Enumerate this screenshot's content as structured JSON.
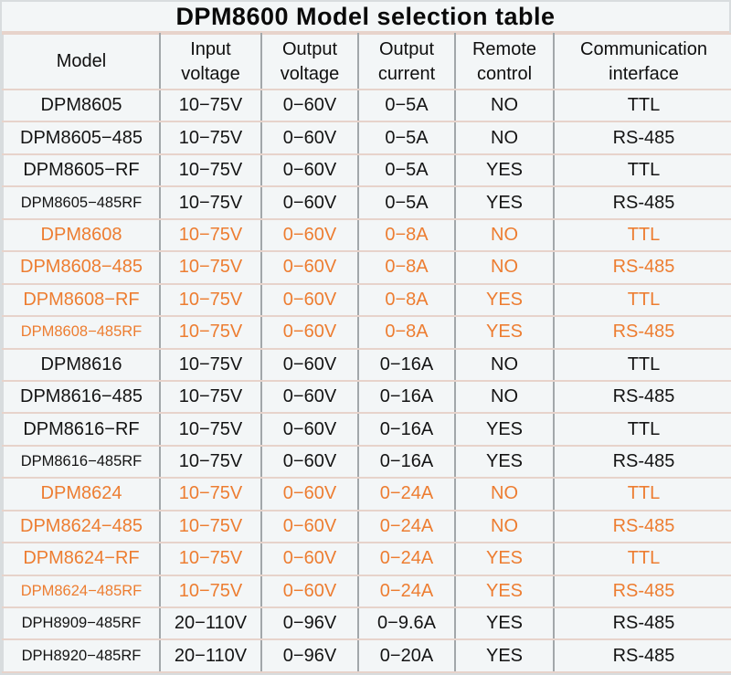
{
  "title": "DPM8600 Model selection table",
  "colors": {
    "highlight_text": "#ED7D31",
    "default_text": "#141414",
    "background": "#f3f6f7",
    "horizontal_rule": "#e7d3cb",
    "vertical_rule": "#a2a7aa"
  },
  "table": {
    "columns": [
      {
        "key": "model",
        "label": "Model"
      },
      {
        "key": "input_voltage",
        "label": "Input voltage"
      },
      {
        "key": "output_voltage",
        "label": "Output voltage"
      },
      {
        "key": "output_current",
        "label": "Output current"
      },
      {
        "key": "remote_control",
        "label": "Remote control"
      },
      {
        "key": "communication_interface",
        "label": "Communication interface"
      }
    ],
    "rows": [
      {
        "model": "DPM8605",
        "input_voltage": "10−75V",
        "output_voltage": "0−60V",
        "output_current": "0−5A",
        "remote_control": "NO",
        "communication_interface": "TTL",
        "highlight": false
      },
      {
        "model": "DPM8605−485",
        "input_voltage": "10−75V",
        "output_voltage": "0−60V",
        "output_current": "0−5A",
        "remote_control": "NO",
        "communication_interface": "RS-485",
        "highlight": false
      },
      {
        "model": "DPM8605−RF",
        "input_voltage": "10−75V",
        "output_voltage": "0−60V",
        "output_current": "0−5A",
        "remote_control": "YES",
        "communication_interface": "TTL",
        "highlight": false
      },
      {
        "model": "DPM8605−485RF",
        "input_voltage": "10−75V",
        "output_voltage": "0−60V",
        "output_current": "0−5A",
        "remote_control": "YES",
        "communication_interface": "RS-485",
        "highlight": false
      },
      {
        "model": "DPM8608",
        "input_voltage": "10−75V",
        "output_voltage": "0−60V",
        "output_current": "0−8A",
        "remote_control": "NO",
        "communication_interface": "TTL",
        "highlight": true
      },
      {
        "model": "DPM8608−485",
        "input_voltage": "10−75V",
        "output_voltage": "0−60V",
        "output_current": "0−8A",
        "remote_control": "NO",
        "communication_interface": "RS-485",
        "highlight": true
      },
      {
        "model": "DPM8608−RF",
        "input_voltage": "10−75V",
        "output_voltage": "0−60V",
        "output_current": "0−8A",
        "remote_control": "YES",
        "communication_interface": "TTL",
        "highlight": true
      },
      {
        "model": "DPM8608−485RF",
        "input_voltage": "10−75V",
        "output_voltage": "0−60V",
        "output_current": "0−8A",
        "remote_control": "YES",
        "communication_interface": "RS-485",
        "highlight": true
      },
      {
        "model": "DPM8616",
        "input_voltage": "10−75V",
        "output_voltage": "0−60V",
        "output_current": "0−16A",
        "remote_control": "NO",
        "communication_interface": "TTL",
        "highlight": false
      },
      {
        "model": "DPM8616−485",
        "input_voltage": "10−75V",
        "output_voltage": "0−60V",
        "output_current": "0−16A",
        "remote_control": "NO",
        "communication_interface": "RS-485",
        "highlight": false
      },
      {
        "model": "DPM8616−RF",
        "input_voltage": "10−75V",
        "output_voltage": "0−60V",
        "output_current": "0−16A",
        "remote_control": "YES",
        "communication_interface": "TTL",
        "highlight": false
      },
      {
        "model": "DPM8616−485RF",
        "input_voltage": "10−75V",
        "output_voltage": "0−60V",
        "output_current": "0−16A",
        "remote_control": "YES",
        "communication_interface": "RS-485",
        "highlight": false
      },
      {
        "model": "DPM8624",
        "input_voltage": "10−75V",
        "output_voltage": "0−60V",
        "output_current": "0−24A",
        "remote_control": "NO",
        "communication_interface": "TTL",
        "highlight": true
      },
      {
        "model": "DPM8624−485",
        "input_voltage": "10−75V",
        "output_voltage": "0−60V",
        "output_current": "0−24A",
        "remote_control": "NO",
        "communication_interface": "RS-485",
        "highlight": true
      },
      {
        "model": "DPM8624−RF",
        "input_voltage": "10−75V",
        "output_voltage": "0−60V",
        "output_current": "0−24A",
        "remote_control": "YES",
        "communication_interface": "TTL",
        "highlight": true
      },
      {
        "model": "DPM8624−485RF",
        "input_voltage": "10−75V",
        "output_voltage": "0−60V",
        "output_current": "0−24A",
        "remote_control": "YES",
        "communication_interface": "RS-485",
        "highlight": true
      },
      {
        "model": "DPH8909−485RF",
        "input_voltage": "20−110V",
        "output_voltage": "0−96V",
        "output_current": "0−9.6A",
        "remote_control": "YES",
        "communication_interface": "RS-485",
        "highlight": false
      },
      {
        "model": "DPH8920−485RF",
        "input_voltage": "20−110V",
        "output_voltage": "0−96V",
        "output_current": "0−20A",
        "remote_control": "YES",
        "communication_interface": "RS-485",
        "highlight": false
      }
    ]
  }
}
